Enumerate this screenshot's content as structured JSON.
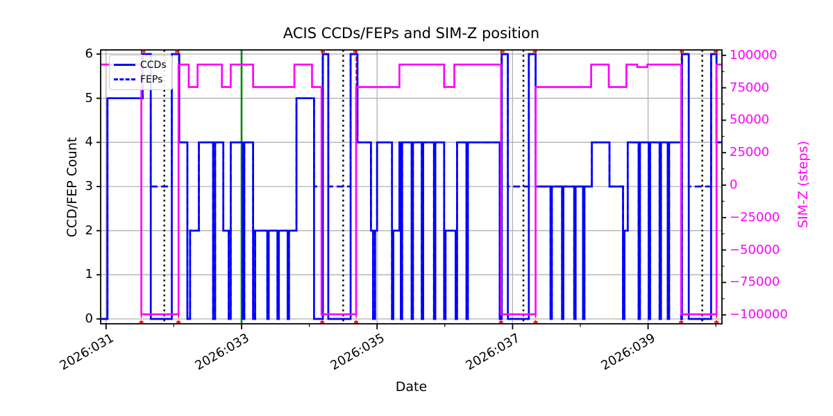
{
  "title": "ACIS CCDs/FEPs and SIM-Z position",
  "xlabel": "Date",
  "ylabel_left": "CCD/FEP Count",
  "ylabel_right": "SIM-Z (steps)",
  "legend": {
    "ccds": "CCDs",
    "feps": "FEPs"
  },
  "colors": {
    "ccds_feps": "#0000ff",
    "simz": "#ff00ff",
    "green_line": "#008000",
    "red_line": "#ff0000",
    "grid": "#b0b0b0",
    "spine": "#000000"
  },
  "axes": {
    "xticks": [
      {
        "day": 31,
        "label": "2026:031"
      },
      {
        "day": 33,
        "label": "2026:033"
      },
      {
        "day": 35,
        "label": "2026:035"
      },
      {
        "day": 37,
        "label": "2026:037"
      },
      {
        "day": 39,
        "label": "2026:039"
      }
    ],
    "xminor_days": [
      32,
      34,
      36,
      38,
      40
    ],
    "yticks_left": [
      {
        "value": 0,
        "label": "0"
      },
      {
        "value": 1,
        "label": "1"
      },
      {
        "value": 2,
        "label": "2"
      },
      {
        "value": 3,
        "label": "3"
      },
      {
        "value": 4,
        "label": "4"
      },
      {
        "value": 5,
        "label": "5"
      },
      {
        "value": 6,
        "label": "6"
      }
    ],
    "yticks_right": [
      {
        "value": 100000,
        "label": "100000"
      },
      {
        "value": 75000,
        "label": "75000"
      },
      {
        "value": 50000,
        "label": "50000"
      },
      {
        "value": 25000,
        "label": "25000"
      },
      {
        "value": 0,
        "label": "0"
      },
      {
        "value": -25000,
        "label": "−25000"
      },
      {
        "value": -50000,
        "label": "−50000"
      },
      {
        "value": -75000,
        "label": "−75000"
      },
      {
        "value": -100000,
        "label": "−100000"
      }
    ],
    "yminor_right_step": 12500
  },
  "chart_data": {
    "type": "line",
    "title": "ACIS CCDs/FEPs and SIM-Z position",
    "xlabel": "Date",
    "ylabel": "CCD/FEP Count",
    "ylabel2": "SIM-Z (steps)",
    "x_unit": "day-of-year 2026",
    "x_range_days": [
      30.92,
      40.09
    ],
    "ylim_left": [
      -0.11,
      6.09
    ],
    "ylim_right": [
      -106800,
      104200
    ],
    "grid": true,
    "legend_position": "upper left",
    "series": [
      {
        "name": "CCDs",
        "axis": "left",
        "style": "solid",
        "color": "#0000ff",
        "steps": [
          [
            30.92,
            0
          ],
          [
            31.02,
            5
          ],
          [
            31.54,
            6
          ],
          [
            31.66,
            0
          ],
          [
            31.97,
            6
          ],
          [
            32.08,
            4
          ],
          [
            32.2,
            0
          ],
          [
            32.24,
            2
          ],
          [
            32.37,
            4
          ],
          [
            32.58,
            0
          ],
          [
            32.61,
            4
          ],
          [
            32.73,
            2
          ],
          [
            32.81,
            0
          ],
          [
            32.84,
            4
          ],
          [
            33.02,
            0
          ],
          [
            33.04,
            4
          ],
          [
            33.17,
            0
          ],
          [
            33.2,
            2
          ],
          [
            33.38,
            0
          ],
          [
            33.4,
            2
          ],
          [
            33.53,
            0
          ],
          [
            33.55,
            2
          ],
          [
            33.68,
            0
          ],
          [
            33.7,
            2
          ],
          [
            33.81,
            5
          ],
          [
            34.07,
            0
          ],
          [
            34.2,
            6
          ],
          [
            34.28,
            0
          ],
          [
            34.61,
            6
          ],
          [
            34.71,
            4
          ],
          [
            34.91,
            2
          ],
          [
            34.94,
            0
          ],
          [
            34.97,
            2
          ],
          [
            35.0,
            4
          ],
          [
            35.22,
            0
          ],
          [
            35.24,
            2
          ],
          [
            35.33,
            4
          ],
          [
            35.35,
            0
          ],
          [
            35.37,
            4
          ],
          [
            35.51,
            0
          ],
          [
            35.53,
            4
          ],
          [
            35.66,
            0
          ],
          [
            35.68,
            4
          ],
          [
            35.84,
            0
          ],
          [
            35.86,
            4
          ],
          [
            35.99,
            0
          ],
          [
            36.01,
            2
          ],
          [
            36.16,
            0
          ],
          [
            36.18,
            4
          ],
          [
            36.32,
            0
          ],
          [
            36.34,
            4
          ],
          [
            36.81,
            0
          ],
          [
            36.84,
            6
          ],
          [
            36.93,
            0
          ],
          [
            37.24,
            6
          ],
          [
            37.34,
            3
          ],
          [
            37.56,
            0
          ],
          [
            37.58,
            3
          ],
          [
            37.73,
            0
          ],
          [
            37.75,
            3
          ],
          [
            37.91,
            0
          ],
          [
            37.93,
            3
          ],
          [
            38.04,
            0
          ],
          [
            38.06,
            3
          ],
          [
            38.17,
            4
          ],
          [
            38.43,
            3
          ],
          [
            38.63,
            0
          ],
          [
            38.65,
            2
          ],
          [
            38.7,
            4
          ],
          [
            38.86,
            0
          ],
          [
            38.88,
            4
          ],
          [
            39.01,
            0
          ],
          [
            39.03,
            4
          ],
          [
            39.17,
            0
          ],
          [
            39.19,
            4
          ],
          [
            39.29,
            0
          ],
          [
            39.31,
            4
          ],
          [
            39.49,
            0
          ],
          [
            39.5,
            6
          ],
          [
            39.6,
            0
          ],
          [
            39.93,
            6
          ],
          [
            40.01,
            4
          ],
          [
            40.09,
            4
          ]
        ]
      },
      {
        "name": "FEPs",
        "axis": "left",
        "style": "dashed",
        "color": "#0000ff",
        "steps": [
          [
            30.92,
            0
          ],
          [
            31.02,
            5
          ],
          [
            31.54,
            6
          ],
          [
            31.66,
            3
          ],
          [
            31.97,
            6
          ],
          [
            32.08,
            4
          ],
          [
            32.2,
            0
          ],
          [
            32.24,
            2
          ],
          [
            32.37,
            4
          ],
          [
            32.58,
            0
          ],
          [
            32.61,
            4
          ],
          [
            32.73,
            2
          ],
          [
            32.81,
            0
          ],
          [
            32.84,
            4
          ],
          [
            33.02,
            0
          ],
          [
            33.04,
            4
          ],
          [
            33.17,
            0
          ],
          [
            33.2,
            2
          ],
          [
            33.38,
            0
          ],
          [
            33.4,
            2
          ],
          [
            33.53,
            0
          ],
          [
            33.55,
            2
          ],
          [
            33.68,
            0
          ],
          [
            33.7,
            2
          ],
          [
            33.81,
            5
          ],
          [
            34.07,
            3
          ],
          [
            34.2,
            6
          ],
          [
            34.28,
            3
          ],
          [
            34.61,
            6
          ],
          [
            34.71,
            4
          ],
          [
            34.91,
            2
          ],
          [
            34.94,
            0
          ],
          [
            34.97,
            2
          ],
          [
            35.0,
            4
          ],
          [
            35.22,
            0
          ],
          [
            35.24,
            2
          ],
          [
            35.33,
            4
          ],
          [
            35.35,
            0
          ],
          [
            35.37,
            4
          ],
          [
            35.51,
            0
          ],
          [
            35.53,
            4
          ],
          [
            35.66,
            0
          ],
          [
            35.68,
            4
          ],
          [
            35.84,
            0
          ],
          [
            35.86,
            4
          ],
          [
            35.99,
            0
          ],
          [
            36.01,
            2
          ],
          [
            36.16,
            0
          ],
          [
            36.18,
            4
          ],
          [
            36.32,
            0
          ],
          [
            36.34,
            4
          ],
          [
            36.81,
            0
          ],
          [
            36.84,
            6
          ],
          [
            36.93,
            3
          ],
          [
            37.24,
            6
          ],
          [
            37.34,
            3
          ],
          [
            37.56,
            0
          ],
          [
            37.58,
            3
          ],
          [
            37.73,
            0
          ],
          [
            37.75,
            3
          ],
          [
            37.91,
            0
          ],
          [
            37.93,
            3
          ],
          [
            38.04,
            0
          ],
          [
            38.06,
            3
          ],
          [
            38.17,
            4
          ],
          [
            38.43,
            3
          ],
          [
            38.63,
            0
          ],
          [
            38.65,
            2
          ],
          [
            38.7,
            4
          ],
          [
            38.86,
            0
          ],
          [
            38.88,
            4
          ],
          [
            39.01,
            0
          ],
          [
            39.03,
            4
          ],
          [
            39.17,
            0
          ],
          [
            39.19,
            4
          ],
          [
            39.29,
            0
          ],
          [
            39.31,
            4
          ],
          [
            39.49,
            0
          ],
          [
            39.5,
            6
          ],
          [
            39.6,
            3
          ],
          [
            39.93,
            6
          ],
          [
            40.01,
            4
          ],
          [
            40.09,
            4
          ]
        ]
      },
      {
        "name": "SIM-Z",
        "axis": "right",
        "style": "solid",
        "color": "#ff00ff",
        "steps": [
          [
            30.92,
            92904
          ],
          [
            31.52,
            -99612
          ],
          [
            32.07,
            92904
          ],
          [
            32.22,
            75624
          ],
          [
            32.35,
            92904
          ],
          [
            32.71,
            75624
          ],
          [
            32.84,
            92904
          ],
          [
            33.17,
            75624
          ],
          [
            33.78,
            92904
          ],
          [
            34.04,
            75624
          ],
          [
            34.18,
            -99612
          ],
          [
            34.69,
            75624
          ],
          [
            35.33,
            92904
          ],
          [
            35.99,
            75624
          ],
          [
            36.14,
            92904
          ],
          [
            36.83,
            -99612
          ],
          [
            37.34,
            75624
          ],
          [
            38.16,
            92904
          ],
          [
            38.42,
            75624
          ],
          [
            38.68,
            92904
          ],
          [
            38.84,
            91000
          ],
          [
            38.99,
            92904
          ],
          [
            39.49,
            -99612
          ],
          [
            40.01,
            92904
          ],
          [
            40.09,
            92904
          ]
        ]
      }
    ],
    "event_lines": {
      "green_solid_days": [
        33.0
      ],
      "black_dotted_days": [
        31.86,
        34.5,
        37.16,
        39.8
      ],
      "red_dashed_days": [
        31.52,
        32.07,
        34.19,
        34.69,
        36.83,
        37.34,
        39.49,
        40.01
      ]
    },
    "red_markers": {
      "top_days": [
        31.55,
        32.05,
        34.2,
        34.68,
        36.85,
        37.33,
        39.5,
        40.0
      ],
      "bottom_days": [
        31.52,
        32.07,
        34.19,
        34.69,
        36.83,
        37.34,
        39.49,
        40.01
      ]
    }
  }
}
